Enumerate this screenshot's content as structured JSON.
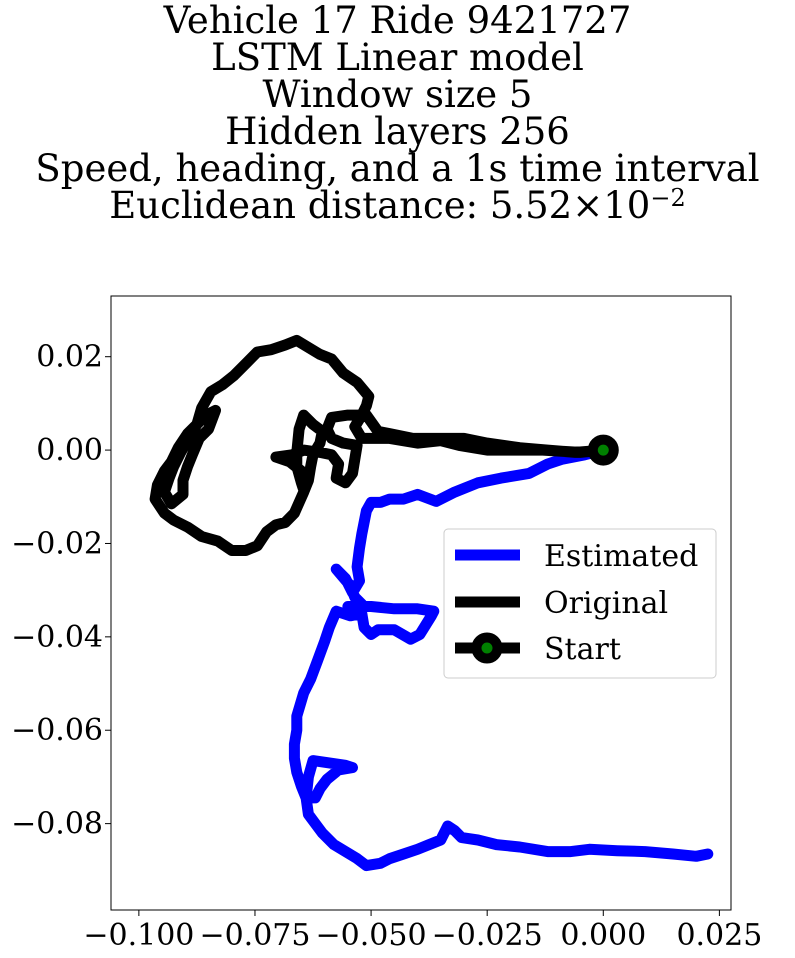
{
  "chart_data": {
    "type": "line",
    "title_lines": [
      "Vehicle 17 Ride 9421727",
      "LSTM Linear model",
      "Window size 5",
      "Hidden layers 256",
      "Speed, heading, and a 1s time interval"
    ],
    "distance_label": "Euclidean distance: ",
    "distance_mantissa": "5.52",
    "distance_times": "×",
    "distance_base": "10",
    "distance_exponent": "−2",
    "xlabel": "",
    "ylabel": "",
    "xlim": [
      -0.106,
      0.0275
    ],
    "ylim": [
      -0.0985,
      0.033
    ],
    "xticks": [
      -0.1,
      -0.075,
      -0.05,
      -0.025,
      0.0,
      0.025
    ],
    "xtick_labels": [
      "−0.100",
      "−0.075",
      "−0.050",
      "−0.025",
      "0.000",
      "0.025"
    ],
    "yticks": [
      0.02,
      0.0,
      -0.02,
      -0.04,
      -0.06,
      -0.08
    ],
    "ytick_labels": [
      "0.02",
      "0.00",
      "−0.02",
      "−0.04",
      "−0.06",
      "−0.08"
    ],
    "grid": false,
    "legend_position": "center-right",
    "series": [
      {
        "name": "Estimated",
        "color": "#0000ff",
        "points": [
          [
            0.0,
            0.0
          ],
          [
            -0.004,
            -0.001
          ],
          [
            -0.009,
            -0.002
          ],
          [
            -0.012,
            -0.003
          ],
          [
            -0.016,
            -0.005
          ],
          [
            -0.022,
            -0.006
          ],
          [
            -0.027,
            -0.007
          ],
          [
            -0.032,
            -0.009
          ],
          [
            -0.036,
            -0.011
          ],
          [
            -0.04,
            -0.0095
          ],
          [
            -0.043,
            -0.0105
          ],
          [
            -0.046,
            -0.0105
          ],
          [
            -0.048,
            -0.0112
          ],
          [
            -0.05,
            -0.0112
          ],
          [
            -0.051,
            -0.013
          ],
          [
            -0.052,
            -0.018
          ],
          [
            -0.0525,
            -0.021
          ],
          [
            -0.053,
            -0.025
          ],
          [
            -0.0525,
            -0.028
          ],
          [
            -0.054,
            -0.0305
          ],
          [
            -0.0555,
            -0.0275
          ],
          [
            -0.0575,
            -0.0255
          ],
          [
            -0.0545,
            -0.029
          ],
          [
            -0.0535,
            -0.0315
          ],
          [
            -0.052,
            -0.033
          ],
          [
            -0.054,
            -0.0335
          ],
          [
            -0.055,
            -0.0335
          ],
          [
            -0.0525,
            -0.0335
          ],
          [
            -0.05,
            -0.0335
          ],
          [
            -0.045,
            -0.034
          ],
          [
            -0.04,
            -0.034
          ],
          [
            -0.0365,
            -0.0345
          ],
          [
            -0.037,
            -0.0355
          ],
          [
            -0.0395,
            -0.0395
          ],
          [
            -0.0415,
            -0.0405
          ],
          [
            -0.045,
            -0.0385
          ],
          [
            -0.0485,
            -0.0385
          ],
          [
            -0.05,
            -0.0395
          ],
          [
            -0.0515,
            -0.038
          ],
          [
            -0.052,
            -0.035
          ],
          [
            -0.0545,
            -0.0355
          ],
          [
            -0.0575,
            -0.0345
          ],
          [
            -0.059,
            -0.038
          ],
          [
            -0.06,
            -0.041
          ],
          [
            -0.0615,
            -0.045
          ],
          [
            -0.063,
            -0.049
          ],
          [
            -0.0645,
            -0.052
          ],
          [
            -0.066,
            -0.057
          ],
          [
            -0.066,
            -0.06
          ],
          [
            -0.0665,
            -0.063
          ],
          [
            -0.0665,
            -0.066
          ],
          [
            -0.066,
            -0.069
          ],
          [
            -0.065,
            -0.072
          ],
          [
            -0.064,
            -0.0745
          ],
          [
            -0.062,
            -0.0745
          ],
          [
            -0.061,
            -0.0725
          ],
          [
            -0.0595,
            -0.0705
          ],
          [
            -0.057,
            -0.0685
          ],
          [
            -0.054,
            -0.068
          ],
          [
            -0.0555,
            -0.0675
          ],
          [
            -0.059,
            -0.067
          ],
          [
            -0.0625,
            -0.0665
          ],
          [
            -0.0635,
            -0.07
          ],
          [
            -0.064,
            -0.0745
          ],
          [
            -0.0635,
            -0.078
          ],
          [
            -0.062,
            -0.08
          ],
          [
            -0.0605,
            -0.082
          ],
          [
            -0.058,
            -0.0845
          ],
          [
            -0.0555,
            -0.086
          ],
          [
            -0.053,
            -0.0875
          ],
          [
            -0.051,
            -0.089
          ],
          [
            -0.048,
            -0.0885
          ],
          [
            -0.046,
            -0.0875
          ],
          [
            -0.043,
            -0.0865
          ],
          [
            -0.04,
            -0.0855
          ],
          [
            -0.0375,
            -0.0845
          ],
          [
            -0.035,
            -0.0835
          ],
          [
            -0.0335,
            -0.0805
          ],
          [
            -0.032,
            -0.0815
          ],
          [
            -0.0305,
            -0.083
          ],
          [
            -0.027,
            -0.0835
          ],
          [
            -0.023,
            -0.0845
          ],
          [
            -0.018,
            -0.085
          ],
          [
            -0.012,
            -0.086
          ],
          [
            -0.007,
            -0.086
          ],
          [
            -0.003,
            -0.0855
          ],
          [
            0.003,
            -0.0858
          ],
          [
            0.009,
            -0.086
          ],
          [
            0.015,
            -0.0865
          ],
          [
            0.02,
            -0.087
          ],
          [
            0.0225,
            -0.0865
          ]
        ]
      },
      {
        "name": "Original",
        "color": "#000000",
        "points": [
          [
            0.0,
            0.0
          ],
          [
            -0.005,
            -0.0005
          ],
          [
            -0.013,
            0.0
          ],
          [
            -0.018,
            0.0
          ],
          [
            -0.025,
            0.0
          ],
          [
            -0.031,
            0.001
          ],
          [
            -0.035,
            0.002
          ],
          [
            -0.04,
            0.0015
          ],
          [
            -0.046,
            0.0025
          ],
          [
            -0.052,
            0.0025
          ],
          [
            -0.0535,
            0.005
          ],
          [
            -0.052,
            0.0075
          ],
          [
            -0.051,
            0.0095
          ],
          [
            -0.0505,
            0.0115
          ],
          [
            -0.053,
            0.0145
          ],
          [
            -0.056,
            0.0165
          ],
          [
            -0.0585,
            0.0195
          ],
          [
            -0.061,
            0.0205
          ],
          [
            -0.0635,
            0.022
          ],
          [
            -0.066,
            0.0235
          ],
          [
            -0.0685,
            0.0225
          ],
          [
            -0.0715,
            0.0215
          ],
          [
            -0.0745,
            0.021
          ],
          [
            -0.077,
            0.0185
          ],
          [
            -0.0795,
            0.016
          ],
          [
            -0.082,
            0.014
          ],
          [
            -0.0845,
            0.0125
          ],
          [
            -0.0865,
            0.009
          ],
          [
            -0.0875,
            0.0055
          ],
          [
            -0.089,
            0.003
          ],
          [
            -0.091,
            -0.0005
          ],
          [
            -0.0925,
            -0.0035
          ],
          [
            -0.0935,
            -0.006
          ],
          [
            -0.0945,
            -0.009
          ],
          [
            -0.093,
            -0.0115
          ],
          [
            -0.0905,
            -0.0095
          ],
          [
            -0.0905,
            -0.0065
          ],
          [
            -0.0895,
            -0.0035
          ],
          [
            -0.0885,
            -0.001
          ],
          [
            -0.087,
            0.0025
          ],
          [
            -0.085,
            0.0045
          ],
          [
            -0.0835,
            0.0085
          ],
          [
            -0.0855,
            0.0075
          ],
          [
            -0.0875,
            0.0055
          ],
          [
            -0.0895,
            0.0035
          ],
          [
            -0.0915,
            0.0005
          ],
          [
            -0.093,
            -0.0025
          ],
          [
            -0.0945,
            -0.0045
          ],
          [
            -0.096,
            -0.0075
          ],
          [
            -0.0965,
            -0.0105
          ],
          [
            -0.0945,
            -0.0135
          ],
          [
            -0.0925,
            -0.015
          ],
          [
            -0.0895,
            -0.0165
          ],
          [
            -0.0865,
            -0.0185
          ],
          [
            -0.083,
            -0.0195
          ],
          [
            -0.08,
            -0.0215
          ],
          [
            -0.077,
            -0.0215
          ],
          [
            -0.0745,
            -0.0205
          ],
          [
            -0.0725,
            -0.0175
          ],
          [
            -0.0705,
            -0.016
          ],
          [
            -0.0685,
            -0.0155
          ],
          [
            -0.0665,
            -0.0135
          ],
          [
            -0.0645,
            -0.009
          ],
          [
            -0.0635,
            -0.0065
          ],
          [
            -0.063,
            -0.0035
          ],
          [
            -0.0625,
            -0.001
          ],
          [
            -0.061,
            0.0015
          ],
          [
            -0.0605,
            0.004
          ],
          [
            -0.0625,
            0.0055
          ],
          [
            -0.0645,
            0.0075
          ],
          [
            -0.0655,
            0.0045
          ],
          [
            -0.066,
            -0.0005
          ],
          [
            -0.066,
            -0.0035
          ],
          [
            -0.065,
            -0.007
          ],
          [
            -0.0645,
            -0.0085
          ],
          [
            -0.065,
            -0.0045
          ],
          [
            -0.0675,
            -0.0025
          ],
          [
            -0.0705,
            -0.0015
          ],
          [
            -0.067,
            -0.001
          ],
          [
            -0.0645,
            0.0
          ],
          [
            -0.061,
            -0.0005
          ],
          [
            -0.0585,
            -0.001
          ],
          [
            -0.057,
            -0.003
          ],
          [
            -0.0575,
            -0.006
          ],
          [
            -0.0555,
            -0.007
          ],
          [
            -0.054,
            -0.005
          ],
          [
            -0.0535,
            -0.002
          ],
          [
            -0.053,
            0.001
          ],
          [
            -0.056,
            0.0015
          ],
          [
            -0.0585,
            0.0025
          ],
          [
            -0.0595,
            0.0045
          ],
          [
            -0.0585,
            0.007
          ],
          [
            -0.055,
            0.0075
          ],
          [
            -0.051,
            0.0075
          ],
          [
            -0.0485,
            0.004
          ],
          [
            -0.046,
            0.0035
          ],
          [
            -0.041,
            0.0025
          ],
          [
            -0.035,
            0.0025
          ],
          [
            -0.03,
            0.0025
          ],
          [
            -0.025,
            0.0015
          ],
          [
            -0.018,
            0.0005
          ],
          [
            -0.012,
            0.0
          ],
          [
            -0.006,
            -0.0005
          ],
          [
            0.0,
            0.0
          ]
        ]
      },
      {
        "name": "Start",
        "marker_edge": "#000000",
        "marker_face": "#008000",
        "points": [
          [
            0.0,
            0.0
          ]
        ]
      }
    ]
  }
}
